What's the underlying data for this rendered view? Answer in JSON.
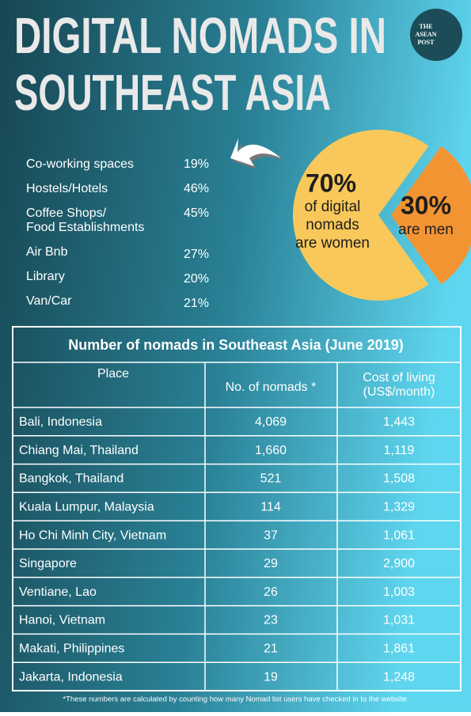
{
  "header": {
    "title": [
      "DIGITAL NOMADS IN",
      "SOUTHEAST ASIA"
    ],
    "logo": [
      "THE",
      "ASEAN",
      "POST"
    ]
  },
  "workplaces": [
    {
      "name": [
        "Co-working spaces"
      ],
      "share": "19%"
    },
    {
      "name": [
        "Hostels/Hotels"
      ],
      "share": "46%"
    },
    {
      "name": [
        "Coffee Shops/",
        "Food Establishments"
      ],
      "share": "45%"
    },
    {
      "name": [
        "Air Bnb"
      ],
      "share": "27%"
    },
    {
      "name": [
        "Library"
      ],
      "share": "20%"
    },
    {
      "name": [
        "Van/Car"
      ],
      "share": "21%"
    }
  ],
  "pie": {
    "slices": [
      {
        "value": 70,
        "label": "70%",
        "text": [
          "of digital",
          "nomads",
          "are women"
        ],
        "color": "#f9c85a"
      },
      {
        "value": 30,
        "label": "30%",
        "text": [
          "are men"
        ],
        "color": "#f39433"
      }
    ]
  },
  "table": {
    "title": "Number of nomads in Southeast Asia (June 2019)",
    "columns": [
      [
        "Place"
      ],
      [
        "No. of nomads *"
      ],
      [
        "Cost of living",
        "(US$/month)"
      ]
    ],
    "rows": [
      [
        "Bali, Indonesia",
        "4,069",
        "1,443"
      ],
      [
        "Chiang Mai, Thailand",
        "1,660",
        "1,119"
      ],
      [
        "Bangkok, Thailand",
        "521",
        "1,508"
      ],
      [
        "Kuala Lumpur, Malaysia",
        "114",
        "1,329"
      ],
      [
        "Ho Chi Minh City, Vietnam",
        "37",
        "1,061"
      ],
      [
        "Singapore",
        "29",
        "2,900"
      ],
      [
        "Ventiane, Lao",
        "26",
        "1,003"
      ],
      [
        "Hanoi, Vietnam",
        "23",
        "1,031"
      ],
      [
        "Makati, Philippines",
        "21",
        "1,861"
      ],
      [
        "Jakarta, Indonesia",
        "19",
        "1,248"
      ]
    ],
    "footnote": "*These numbers are calculated by counting how many Nomad list users have checked in to the website."
  }
}
